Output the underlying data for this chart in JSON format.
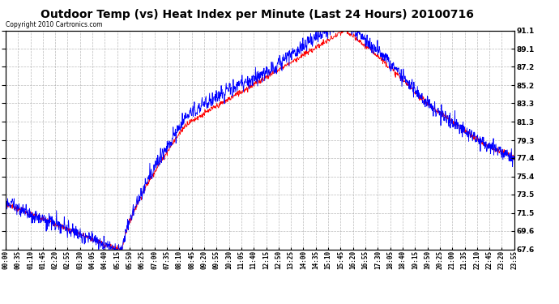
{
  "title": "Outdoor Temp (vs) Heat Index per Minute (Last 24 Hours) 20100716",
  "copyright_text": "Copyright 2010 Cartronics.com",
  "yticks": [
    67.6,
    69.6,
    71.5,
    73.5,
    75.4,
    77.4,
    79.3,
    81.3,
    83.3,
    85.2,
    87.2,
    89.1,
    91.1
  ],
  "ylim": [
    67.6,
    91.1
  ],
  "x_labels": [
    "00:00",
    "00:35",
    "01:10",
    "01:45",
    "02:20",
    "02:55",
    "03:30",
    "04:05",
    "04:40",
    "05:15",
    "05:50",
    "06:25",
    "07:00",
    "07:35",
    "08:10",
    "08:45",
    "09:20",
    "09:55",
    "10:30",
    "11:05",
    "11:40",
    "12:15",
    "12:50",
    "13:25",
    "14:00",
    "14:35",
    "15:10",
    "15:45",
    "16:20",
    "16:55",
    "17:30",
    "18:05",
    "18:40",
    "19:15",
    "19:50",
    "20:25",
    "21:00",
    "21:35",
    "22:10",
    "22:45",
    "23:20",
    "23:55"
  ],
  "background_color": "#ffffff",
  "grid_color": "#aaaaaa",
  "title_fontsize": 10,
  "line_red_color": "#ff0000",
  "line_blue_color": "#0000ff",
  "figsize": [
    6.9,
    3.75
  ],
  "dpi": 100
}
